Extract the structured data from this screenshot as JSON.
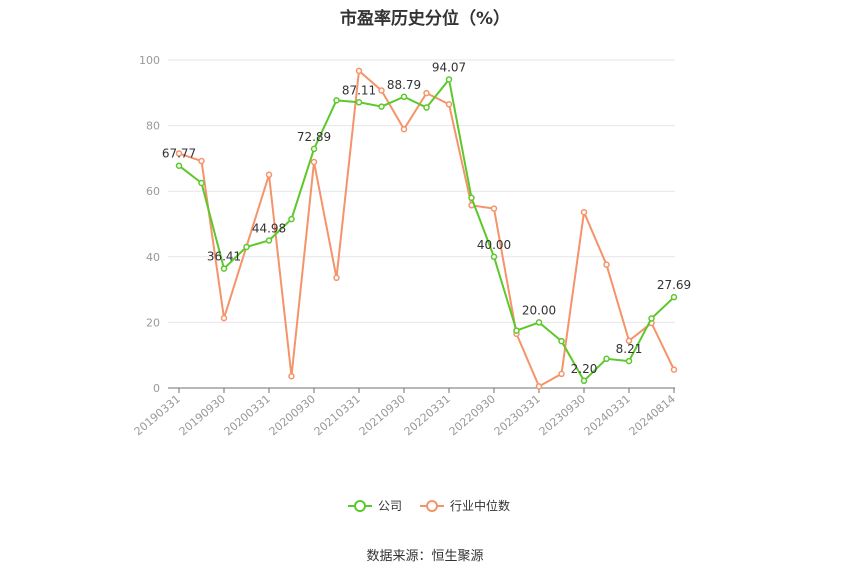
{
  "title": "市盈率历史分位（%）",
  "source": "数据来源：恒生聚源",
  "chart_data": {
    "type": "line",
    "title": "市盈率历史分位（%）",
    "ylim": [
      0,
      100
    ],
    "yticks": [
      0,
      20,
      40,
      60,
      80,
      100
    ],
    "grid": true,
    "legend_position": "bottom",
    "x_tick_labels": [
      "20190331",
      "20190930",
      "20200331",
      "20200930",
      "20210331",
      "20210930",
      "20220331",
      "20220930",
      "20230331",
      "20230930",
      "20240331",
      "20240814"
    ],
    "x": [
      "20190331",
      "20190630",
      "20190930",
      "20191231",
      "20200331",
      "20200630",
      "20200930",
      "20201231",
      "20210331",
      "20210630",
      "20210930",
      "20211231",
      "20220331",
      "20220630",
      "20220930",
      "20221231",
      "20230331",
      "20230630",
      "20230930",
      "20231231",
      "20240331",
      "20240630",
      "20240814"
    ],
    "series": [
      {
        "name": "公司",
        "color": "#5cc82a",
        "values": [
          67.77,
          62.5,
          36.41,
          43.0,
          44.98,
          51.5,
          72.89,
          87.7,
          87.11,
          85.8,
          88.79,
          85.5,
          94.07,
          58.0,
          40.0,
          17.5,
          20.0,
          14.3,
          2.2,
          8.9,
          8.21,
          21.2,
          27.69
        ]
      },
      {
        "name": "行业中位数",
        "color": "#f5936a",
        "values": [
          71.5,
          69.2,
          21.3,
          null,
          65.0,
          3.6,
          68.9,
          33.6,
          96.7,
          90.7,
          78.9,
          89.9,
          86.5,
          55.7,
          54.7,
          16.5,
          0.5,
          4.3,
          53.6,
          37.6,
          14.4,
          19.8,
          5.6
        ]
      }
    ],
    "data_labels": [
      {
        "series": 0,
        "index": 0,
        "text": "67.77"
      },
      {
        "series": 0,
        "index": 2,
        "text": "36.41"
      },
      {
        "series": 0,
        "index": 4,
        "text": "44.98"
      },
      {
        "series": 0,
        "index": 6,
        "text": "72.89"
      },
      {
        "series": 0,
        "index": 8,
        "text": "87.11"
      },
      {
        "series": 0,
        "index": 10,
        "text": "88.79"
      },
      {
        "series": 0,
        "index": 12,
        "text": "94.07"
      },
      {
        "series": 0,
        "index": 14,
        "text": "40.00"
      },
      {
        "series": 0,
        "index": 16,
        "text": "20.00"
      },
      {
        "series": 0,
        "index": 18,
        "text": "2.20"
      },
      {
        "series": 0,
        "index": 20,
        "text": "8.21"
      },
      {
        "series": 0,
        "index": 22,
        "text": "27.69"
      }
    ]
  }
}
